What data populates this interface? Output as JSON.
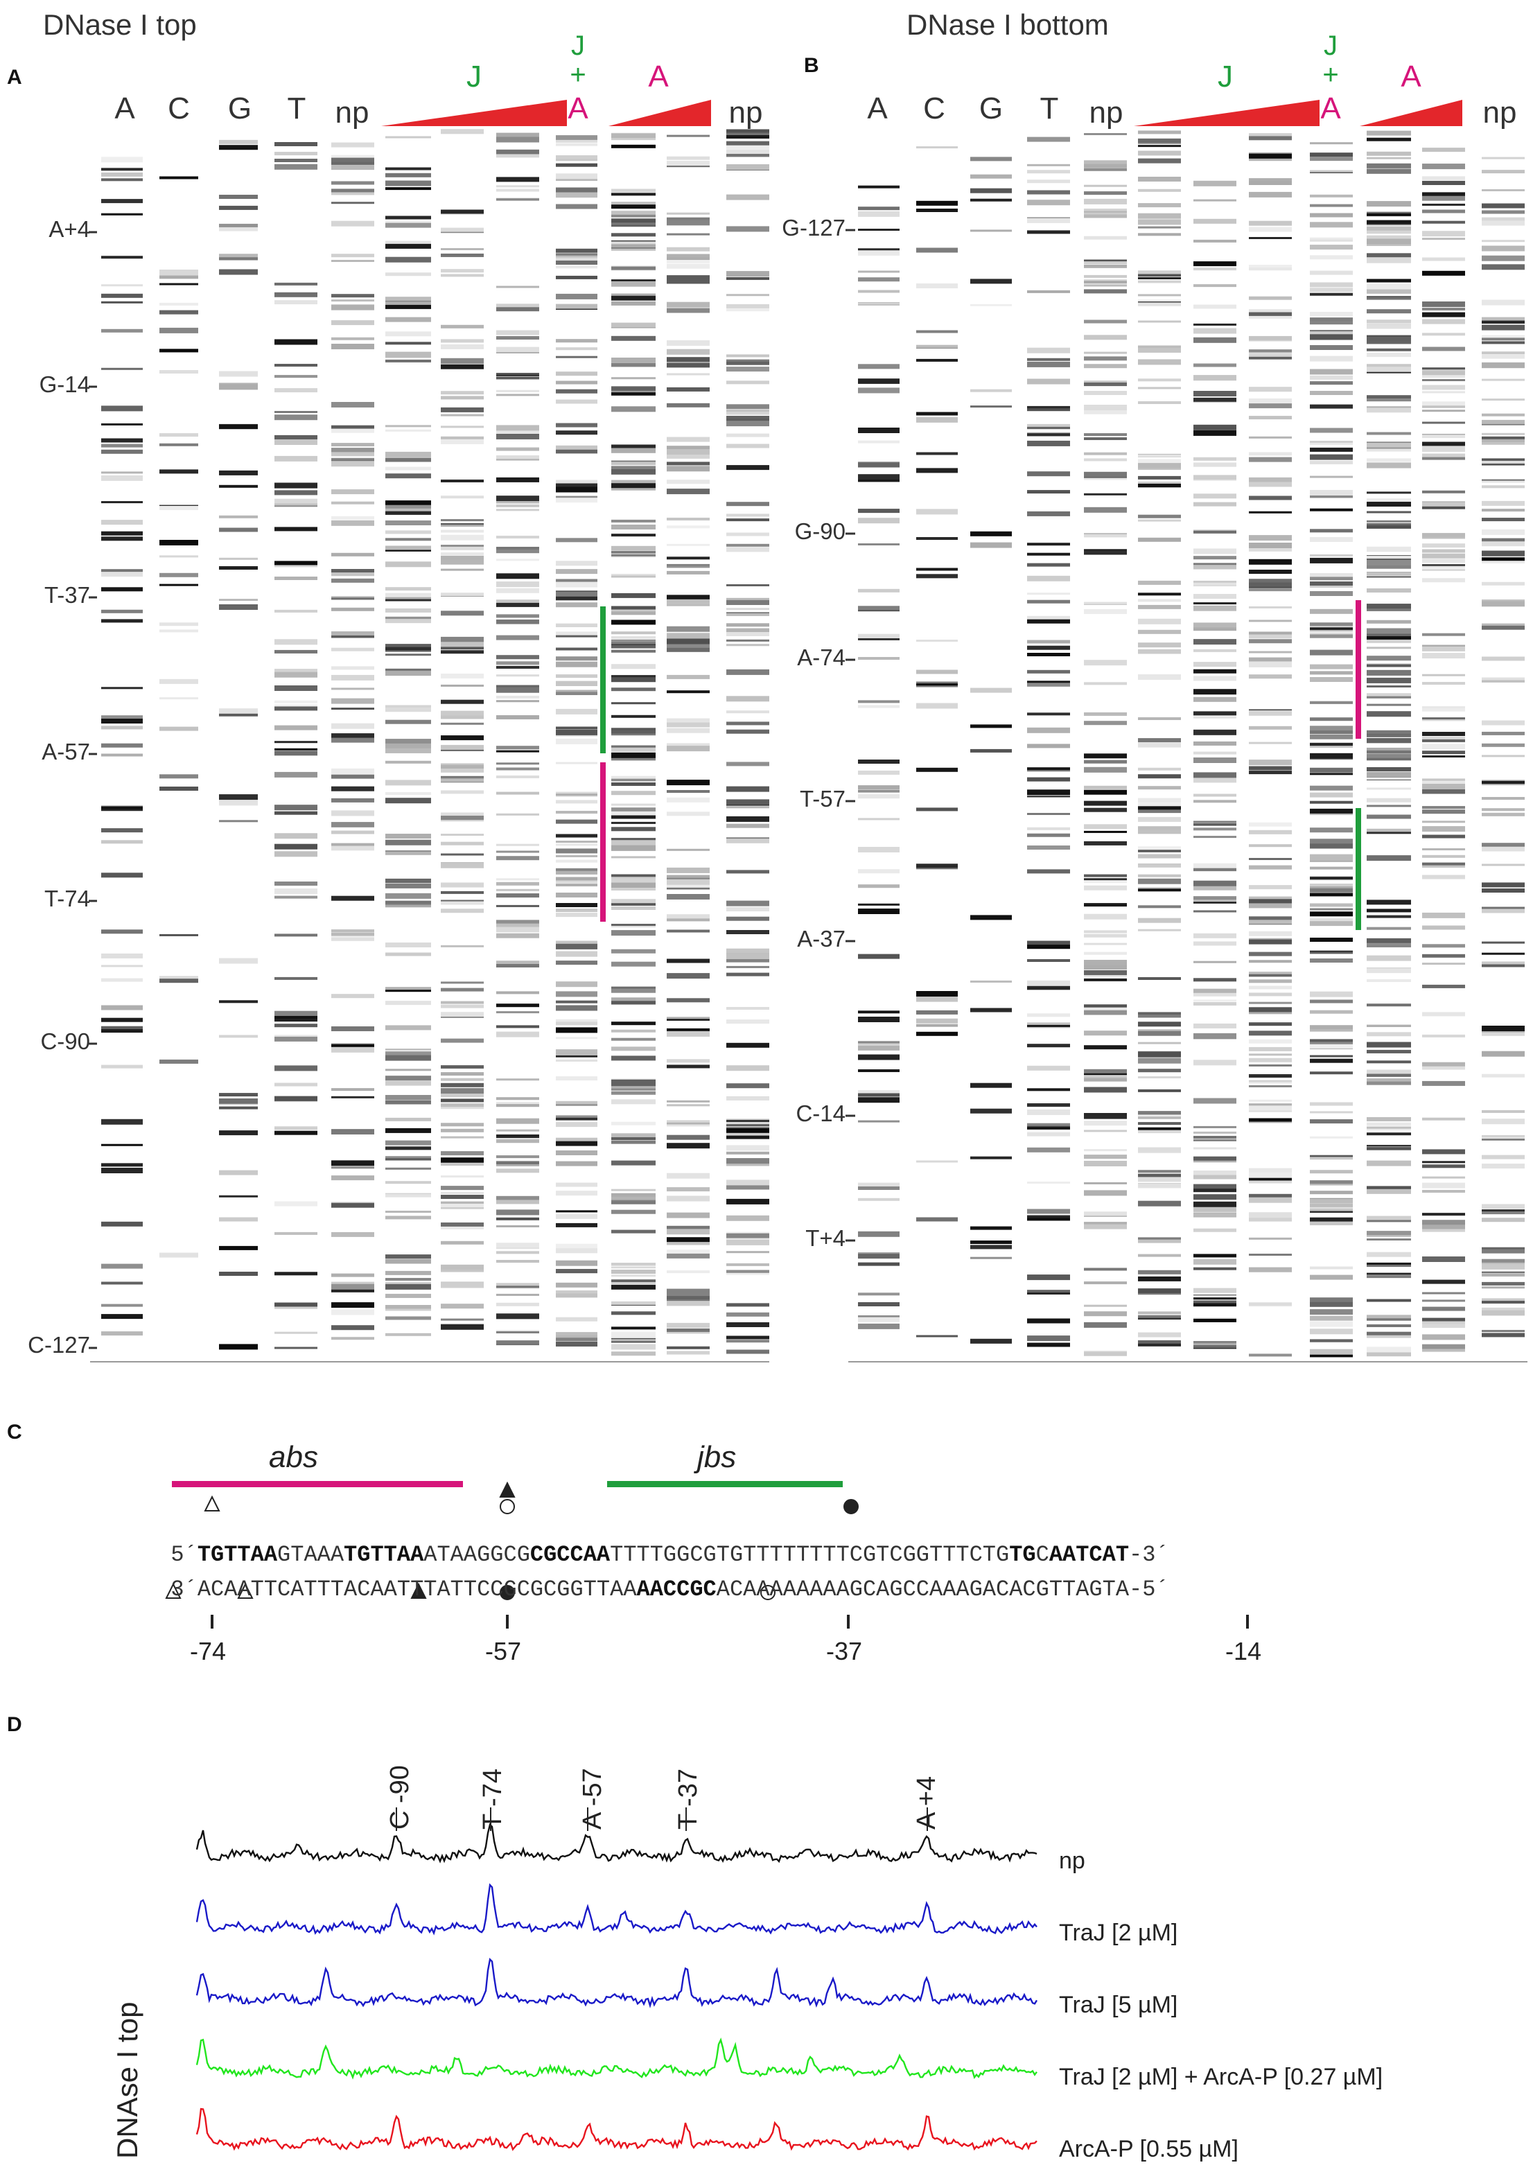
{
  "panels": {
    "A": {
      "letter": "A",
      "title": "DNase I top",
      "lane_headers": [
        "A",
        "C",
        "G",
        "T",
        "np",
        "J",
        "J",
        "+",
        "A",
        "A",
        "np"
      ],
      "markers": [
        "A+4",
        "G-14",
        "T-37",
        "A-57",
        "T-74",
        "C-90",
        "C-127"
      ]
    },
    "B": {
      "letter": "B",
      "title": "DNase I bottom",
      "lane_headers": [
        "A",
        "C",
        "G",
        "T",
        "np",
        "J",
        "J",
        "+",
        "A",
        "A",
        "np"
      ],
      "markers": [
        "G-127",
        "G-90",
        "A-74",
        "T-57",
        "A-37",
        "C-14",
        "T+4"
      ]
    },
    "C": {
      "letter": "C",
      "abs_label": "abs",
      "jbs_label": "jbs",
      "top_prefix": "5´",
      "top_suffix": "-3´",
      "bottom_prefix": "3´",
      "bottom_suffix": "-5´",
      "top_seq_parts": [
        {
          "t": "TGTTAA",
          "b": true
        },
        {
          "t": "GTAAA",
          "b": false
        },
        {
          "t": "TGTTAA",
          "b": true
        },
        {
          "t": "ATAAGGCG",
          "b": false
        },
        {
          "t": "CGCCAA",
          "b": true
        },
        {
          "t": "TTTTGGCGTGTTTTTTTTCGTCGGTTTCTG",
          "b": false
        },
        {
          "t": "TG",
          "b": true
        },
        {
          "t": "C",
          "b": false
        },
        {
          "t": "AATCAT",
          "b": true
        }
      ],
      "bottom_seq_parts": [
        {
          "t": "ACAATTCATTTACAATTTATTCCGCGCGGTTAA",
          "b": false
        },
        {
          "t": "AACCGC",
          "b": true
        },
        {
          "t": "ACAAAAAAAAGCAGCCAAAGACACGTTAGTA",
          "b": false
        }
      ],
      "axis_ticks": [
        "-74",
        "-57",
        "-37",
        "-14"
      ]
    },
    "D": {
      "letter": "D",
      "y_label": "DNAse I top",
      "peaks": [
        "C -90",
        "T -74",
        "A -57",
        "T -37",
        "A +4"
      ],
      "traces": [
        {
          "label": "np",
          "color": "#111111"
        },
        {
          "label": "TraJ [2 µM]",
          "color": "#1a1ac8"
        },
        {
          "label": "TraJ [5 µM]",
          "color": "#1a1ac8"
        },
        {
          "label": "TraJ [2 µM] + ArcA-P [0.27 µM]",
          "color": "#22e61e"
        },
        {
          "label": "ArcA-P [0.55 µM]",
          "color": "#e8141e"
        }
      ]
    }
  },
  "colors": {
    "traj": "#1f9e3c",
    "arca": "#d6147a",
    "wedge": "#e3262b"
  }
}
